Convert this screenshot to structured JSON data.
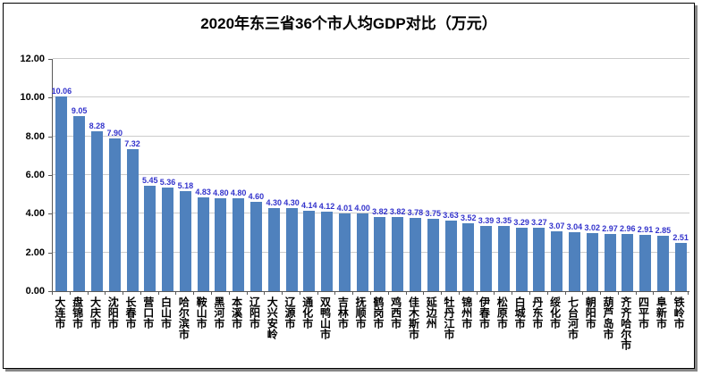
{
  "chart_data": {
    "type": "bar",
    "title": "2020年东三省36个市人均GDP对比（万元）",
    "xlabel": "",
    "ylabel": "",
    "ylim": [
      0,
      12
    ],
    "grid": true,
    "legend": "none",
    "bar_color": "#4F81BD",
    "value_label_color": "#3333CC",
    "categories": [
      "大连市",
      "盘锦市",
      "大庆市",
      "沈阳市",
      "长春市",
      "营口市",
      "白山市",
      "哈尔滨市",
      "鞍山市",
      "黑河市",
      "本溪市",
      "辽阳市",
      "大兴安岭",
      "辽源市",
      "通化市",
      "双鸭山市",
      "吉林市",
      "抚顺市",
      "鹤岗市",
      "鸡西市",
      "佳木斯市",
      "延边州",
      "牡丹江市",
      "锦州市",
      "伊春市",
      "松原市",
      "白城市",
      "丹东市",
      "绥化市",
      "七台河市",
      "朝阳市",
      "葫芦岛市",
      "齐齐哈尔市",
      "四平市",
      "阜新市",
      "铁岭市"
    ],
    "values": [
      10.06,
      9.05,
      8.28,
      7.9,
      7.32,
      5.45,
      5.36,
      5.18,
      4.83,
      4.8,
      4.8,
      4.6,
      4.3,
      4.3,
      4.14,
      4.12,
      4.01,
      4.0,
      3.82,
      3.82,
      3.78,
      3.75,
      3.63,
      3.52,
      3.39,
      3.35,
      3.29,
      3.27,
      3.07,
      3.04,
      3.02,
      2.97,
      2.96,
      2.91,
      2.85,
      2.51
    ],
    "yticks": [
      {
        "value": 0,
        "label": "0.00"
      },
      {
        "value": 2,
        "label": "2.00"
      },
      {
        "value": 4,
        "label": "4.00"
      },
      {
        "value": 6,
        "label": "6.00"
      },
      {
        "value": 8,
        "label": "8.00"
      },
      {
        "value": 10,
        "label": "10.00"
      },
      {
        "value": 12,
        "label": "12.00"
      }
    ]
  }
}
